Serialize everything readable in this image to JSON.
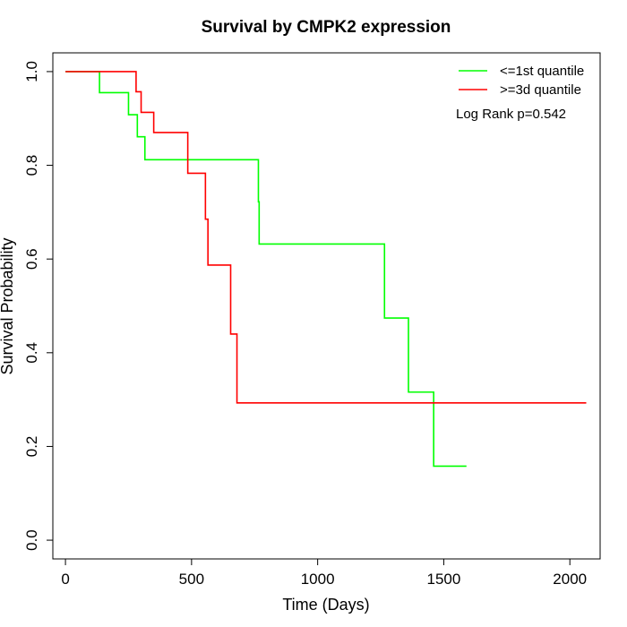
{
  "chart_data": {
    "type": "line",
    "step": true,
    "title": "Survival by CMPK2 expression",
    "xlabel": "Time (Days)",
    "ylabel": "Survival Probability",
    "xlim": [
      -50,
      2120
    ],
    "ylim": [
      -0.04,
      1.04
    ],
    "x_ticks": [
      0,
      500,
      1000,
      1500,
      2000
    ],
    "x_tick_labels": [
      "0",
      "500",
      "1000",
      "1500",
      "2000"
    ],
    "y_ticks": [
      0.0,
      0.2,
      0.4,
      0.6,
      0.8,
      1.0
    ],
    "y_tick_labels": [
      "0.0",
      "0.2",
      "0.4",
      "0.6",
      "0.8",
      "1.0"
    ],
    "grid": false,
    "legend_position": "top-right",
    "annotation": "Log Rank p=0.542",
    "series": [
      {
        "name": "<=1st quantile",
        "color": "#00ff00",
        "x": [
          0,
          135,
          250,
          285,
          315,
          765,
          768,
          1265,
          1360,
          1460,
          1590
        ],
        "y": [
          1.0,
          0.955,
          0.908,
          0.861,
          0.812,
          0.722,
          0.632,
          0.474,
          0.316,
          0.158,
          0.158
        ]
      },
      {
        "name": ">=3d quantile",
        "color": "#ff0000",
        "x": [
          0,
          280,
          300,
          350,
          485,
          555,
          565,
          655,
          680,
          2065
        ],
        "y": [
          1.0,
          0.957,
          0.913,
          0.87,
          0.783,
          0.685,
          0.587,
          0.44,
          0.293,
          0.293
        ]
      }
    ]
  }
}
